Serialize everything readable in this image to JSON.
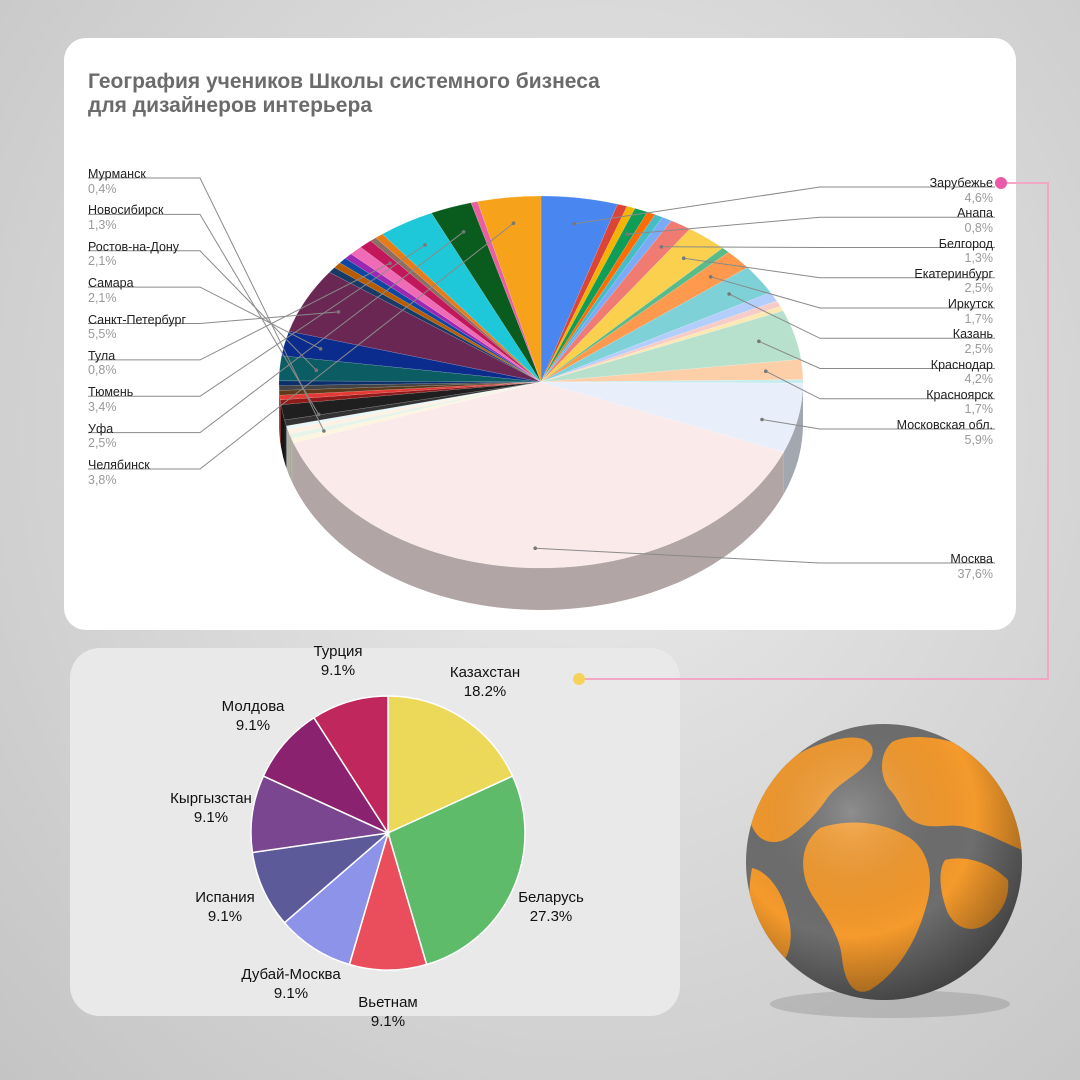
{
  "title_line1": "География учеников Школы системного бизнеса",
  "title_line2": "для дизайнеров интерьера",
  "colors": {
    "accent_pink": "#ea5aa8",
    "accent_yellow": "#f6d25a",
    "globe_land": "#f59a2c",
    "globe_sea": "#6e6e6e"
  },
  "chart_data": [
    {
      "type": "pie",
      "title": "География учеников Школы системного бизнеса для дизайнеров интерьера",
      "style": "3d",
      "slices": [
        {
          "name": "Зарубежье",
          "value_label": "4,6%",
          "value": 4.6,
          "color": "#4a86f0",
          "labeled": true
        },
        {
          "name": "",
          "value": 0.6,
          "color": "#db4437",
          "labeled": false
        },
        {
          "name": "",
          "value": 0.5,
          "color": "#f4b400",
          "labeled": false
        },
        {
          "name": "Анапа",
          "value_label": "0,8%",
          "value": 0.8,
          "color": "#0f9d58",
          "labeled": true
        },
        {
          "name": "",
          "value": 0.5,
          "color": "#ff6d01",
          "labeled": false
        },
        {
          "name": "",
          "value": 0.5,
          "color": "#46bdc6",
          "labeled": false
        },
        {
          "name": "",
          "value": 0.6,
          "color": "#7baaf7",
          "labeled": false
        },
        {
          "name": "Белгород",
          "value_label": "1,3%",
          "value": 1.3,
          "color": "#f07b72",
          "labeled": true
        },
        {
          "name": "Екатеринбург",
          "value_label": "2,5%",
          "value": 2.5,
          "color": "#fcd04f",
          "labeled": true
        },
        {
          "name": "",
          "value": 0.5,
          "color": "#57bb8a",
          "labeled": false
        },
        {
          "name": "Иркутск",
          "value_label": "1,7%",
          "value": 1.7,
          "color": "#ff994d",
          "labeled": true
        },
        {
          "name": "Казань",
          "value_label": "2,5%",
          "value": 2.5,
          "color": "#7ed1d7",
          "labeled": true
        },
        {
          "name": "",
          "value": 0.8,
          "color": "#b3cefb",
          "labeled": false
        },
        {
          "name": "",
          "value": 0.5,
          "color": "#f7cbc7",
          "labeled": false
        },
        {
          "name": "",
          "value": 0.4,
          "color": "#fce8b2",
          "labeled": false
        },
        {
          "name": "Краснодар",
          "value_label": "4,2%",
          "value": 4.2,
          "color": "#b7e1cd",
          "labeled": true
        },
        {
          "name": "Красноярск",
          "value_label": "1,7%",
          "value": 1.7,
          "color": "#fdcfa8",
          "labeled": true
        },
        {
          "name": "",
          "value": 0.3,
          "color": "#c7ecef",
          "labeled": false
        },
        {
          "name": "Московская обл.",
          "value_label": "5,9%",
          "value": 5.9,
          "color": "#e8effb",
          "labeled": true
        },
        {
          "name": "Москва",
          "value_label": "37,6%",
          "value": 37.6,
          "color": "#fbeaea",
          "labeled": true
        },
        {
          "name": "",
          "value": 0.4,
          "color": "#fdf5e0",
          "labeled": false
        },
        {
          "name": "",
          "value": 0.4,
          "color": "#e6f4ea",
          "labeled": false
        },
        {
          "name": "Мурманск",
          "value_label": "0,4%",
          "value": 0.4,
          "color": "#fff1e3",
          "labeled": true
        },
        {
          "name": "",
          "value": 0.3,
          "color": "#e8f7f8",
          "labeled": false
        },
        {
          "name": "",
          "value": 0.5,
          "color": "#333333",
          "labeled": false
        },
        {
          "name": "Новосибирск",
          "value_label": "1,3%",
          "value": 1.3,
          "color": "#1f1f1f",
          "labeled": true
        },
        {
          "name": "",
          "value": 0.4,
          "color": "#8f1a1a",
          "labeled": false
        },
        {
          "name": "",
          "value": 0.4,
          "color": "#e53935",
          "labeled": false
        },
        {
          "name": "",
          "value": 0.4,
          "color": "#5d3a1a",
          "labeled": false
        },
        {
          "name": "",
          "value": 0.4,
          "color": "#444444",
          "labeled": false
        },
        {
          "name": "",
          "value": 0.4,
          "color": "#0b2f6b",
          "labeled": false
        },
        {
          "name": "Ростов-на-Дону",
          "value_label": "2,1%",
          "value": 2.1,
          "color": "#0b5d63",
          "labeled": true
        },
        {
          "name": "Самара",
          "value_label": "2,1%",
          "value": 2.1,
          "color": "#0b2c8c",
          "labeled": true
        },
        {
          "name": "Санкт-Петербург",
          "value_label": "5,5%",
          "value": 5.5,
          "color": "#6a2754",
          "labeled": true
        },
        {
          "name": "",
          "value": 0.5,
          "color": "#1a3a66",
          "labeled": false
        },
        {
          "name": "",
          "value": 0.5,
          "color": "#b85c00",
          "labeled": false
        },
        {
          "name": "",
          "value": 0.5,
          "color": "#0d47a1",
          "labeled": false
        },
        {
          "name": "",
          "value": 0.5,
          "color": "#9c27b0",
          "labeled": false
        },
        {
          "name": "",
          "value": 0.8,
          "color": "#f06bb6",
          "labeled": false
        },
        {
          "name": "Тула",
          "value_label": "0,8%",
          "value": 0.8,
          "color": "#c2185b",
          "labeled": true
        },
        {
          "name": "",
          "value": 0.4,
          "color": "#8d6e63",
          "labeled": false
        },
        {
          "name": "",
          "value": 0.5,
          "color": "#e67c17",
          "labeled": false
        },
        {
          "name": "Тюмень",
          "value_label": "3,4%",
          "value": 3.4,
          "color": "#1ec8d8",
          "labeled": true
        },
        {
          "name": "Уфа",
          "value_label": "2,5%",
          "value": 2.5,
          "color": "#0a5c1e",
          "labeled": true
        },
        {
          "name": "",
          "value": 0.4,
          "color": "#e8609f",
          "labeled": false
        },
        {
          "name": "Челябинск",
          "value_label": "3,8%",
          "value": 3.8,
          "color": "#f7a21b",
          "labeled": true
        }
      ]
    },
    {
      "type": "pie",
      "slices": [
        {
          "name": "Казахстан",
          "value_label": "18.2%",
          "value": 18.2,
          "color": "#ecd95a"
        },
        {
          "name": "Беларусь",
          "value_label": "27.3%",
          "value": 27.3,
          "color": "#5dbb69"
        },
        {
          "name": "Вьетнам",
          "value_label": "9.1%",
          "value": 9.1,
          "color": "#ea4e5c"
        },
        {
          "name": "Дубай-Москва",
          "value_label": "9.1%",
          "value": 9.1,
          "color": "#8e93ea"
        },
        {
          "name": "Испания",
          "value_label": "9.1%",
          "value": 9.1,
          "color": "#5d5a9a"
        },
        {
          "name": "Кыргызстан",
          "value_label": "9.1%",
          "value": 9.1,
          "color": "#7a4690"
        },
        {
          "name": "Молдова",
          "value_label": "9.1%",
          "value": 9.1,
          "color": "#8b2270"
        },
        {
          "name": "Турция",
          "value_label": "9.1%",
          "value": 9.1,
          "color": "#c0275c"
        }
      ]
    }
  ]
}
